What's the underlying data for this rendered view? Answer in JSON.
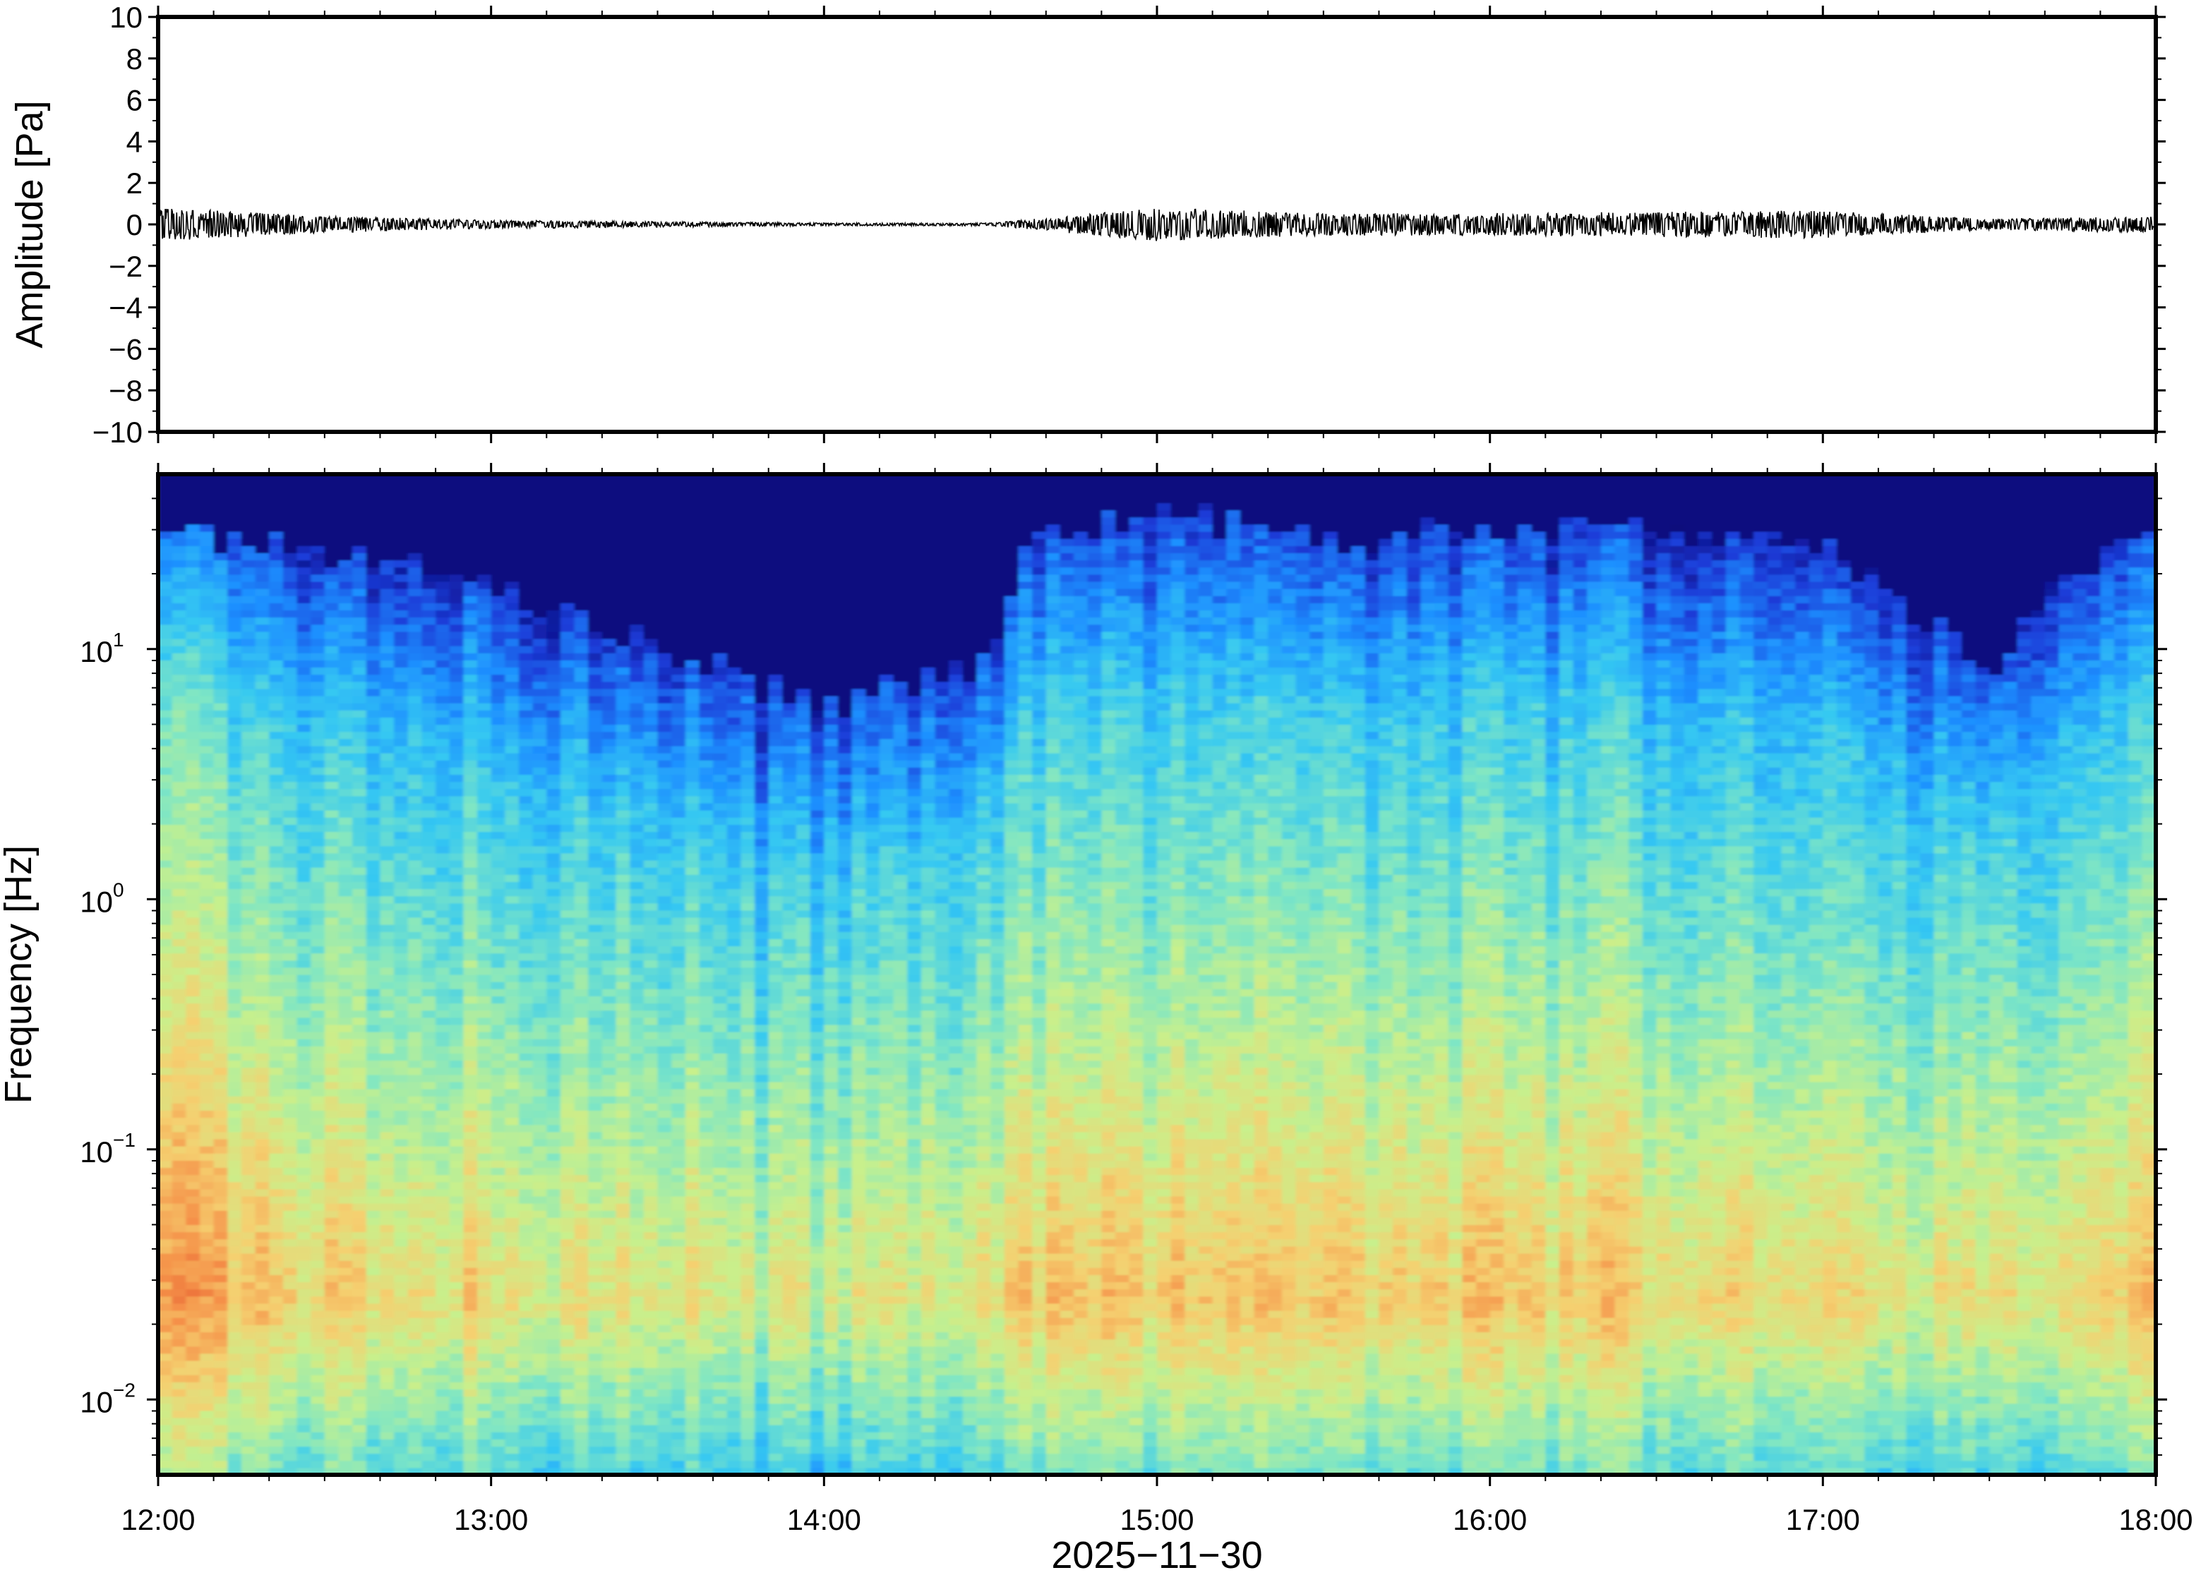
{
  "chart_data": [
    {
      "type": "line",
      "panel": "waveform",
      "ylabel": "Amplitude [Pa]",
      "xlabel": "",
      "ylim": [
        -10,
        10
      ],
      "yticks": [
        -10,
        -8,
        -6,
        -4,
        -2,
        0,
        2,
        4,
        6,
        8,
        10
      ],
      "ytick_labels": [
        "−10",
        "−8",
        "−6",
        "−4",
        "−2",
        "0",
        "2",
        "4",
        "6",
        "8",
        "10"
      ],
      "xlim": [
        "12:00",
        "18:00"
      ],
      "grid": false,
      "line_color": "#000000",
      "series": [
        {
          "x": [
            "12:00",
            "12:30",
            "13:00",
            "13:30",
            "14:00",
            "14:30",
            "15:00",
            "15:30",
            "16:00",
            "16:30",
            "17:00",
            "17:30",
            "18:00"
          ],
          "values": [
            0.6,
            0.3,
            0.15,
            0.1,
            0.05,
            0.05,
            0.6,
            0.4,
            0.4,
            0.45,
            0.5,
            0.2,
            0.3
          ]
        }
      ]
    },
    {
      "type": "heatmap",
      "panel": "spectrogram",
      "ylabel": "Frequency [Hz]",
      "xlabel": "2025−11−30",
      "yscale": "log",
      "ylim": [
        0.005,
        50
      ],
      "yticks": [
        0.01,
        0.1,
        1,
        10
      ],
      "ytick_labels": [
        {
          "base": "10",
          "exp": "−2"
        },
        {
          "base": "10",
          "exp": "−1"
        },
        {
          "base": "10",
          "exp": "0"
        },
        {
          "base": "10",
          "exp": "1"
        }
      ],
      "xlim": [
        "12:00",
        "18:00"
      ],
      "xticks": [
        "12:00",
        "13:00",
        "14:00",
        "15:00",
        "16:00",
        "17:00",
        "18:00"
      ],
      "grid": false,
      "colormap": [
        "#08006e",
        "#1b3cd8",
        "#1e90ff",
        "#35c8f2",
        "#7fe6c4",
        "#c8f08c",
        "#f5d070",
        "#f59048",
        "#e04828"
      ],
      "x_hours": [
        12.0,
        12.5,
        13.0,
        13.5,
        14.0,
        14.5,
        14.6,
        15.0,
        15.5,
        16.0,
        16.5,
        17.0,
        17.5,
        17.75,
        18.0
      ],
      "upper_edge_hz": [
        30,
        25,
        18,
        10,
        6,
        9,
        28,
        35,
        28,
        32,
        30,
        28,
        8,
        22,
        28
      ]
    }
  ]
}
